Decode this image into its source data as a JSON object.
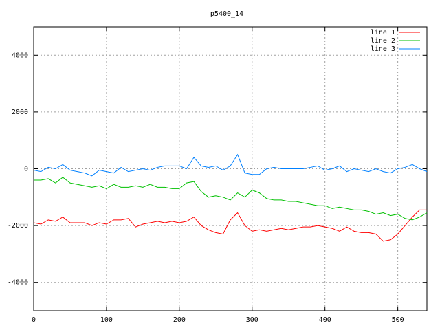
{
  "chart_data": {
    "type": "line",
    "title": "p5400_14",
    "x": [
      0,
      10,
      20,
      30,
      40,
      50,
      60,
      70,
      80,
      90,
      100,
      110,
      120,
      130,
      140,
      150,
      160,
      170,
      180,
      190,
      200,
      210,
      220,
      230,
      240,
      250,
      260,
      270,
      280,
      290,
      300,
      310,
      320,
      330,
      340,
      350,
      360,
      370,
      380,
      390,
      400,
      410,
      420,
      430,
      440,
      450,
      460,
      470,
      480,
      490,
      500,
      510,
      520,
      530,
      540
    ],
    "series": [
      {
        "name": "line 1",
        "color": "#ff0000",
        "values": [
          -1900,
          -1950,
          -1800,
          -1850,
          -1700,
          -1900,
          -1900,
          -1900,
          -2000,
          -1900,
          -1950,
          -1800,
          -1800,
          -1750,
          -2050,
          -1950,
          -1900,
          -1850,
          -1900,
          -1850,
          -1900,
          -1850,
          -1700,
          -2000,
          -2150,
          -2250,
          -2300,
          -1800,
          -1550,
          -2000,
          -2200,
          -2150,
          -2200,
          -2150,
          -2100,
          -2150,
          -2100,
          -2050,
          -2050,
          -2000,
          -2050,
          -2100,
          -2200,
          -2050,
          -2200,
          -2250,
          -2250,
          -2300,
          -2550,
          -2500,
          -2300,
          -2000,
          -1700,
          -1450,
          -1450
        ]
      },
      {
        "name": "line 2",
        "color": "#00c000",
        "values": [
          -400,
          -400,
          -350,
          -500,
          -300,
          -500,
          -550,
          -600,
          -650,
          -600,
          -700,
          -550,
          -650,
          -650,
          -600,
          -650,
          -550,
          -650,
          -650,
          -700,
          -700,
          -500,
          -450,
          -800,
          -1000,
          -950,
          -1000,
          -1100,
          -850,
          -1000,
          -750,
          -850,
          -1050,
          -1100,
          -1100,
          -1150,
          -1150,
          -1200,
          -1250,
          -1300,
          -1300,
          -1400,
          -1350,
          -1400,
          -1450,
          -1450,
          -1500,
          -1600,
          -1550,
          -1650,
          -1600,
          -1750,
          -1800,
          -1700,
          -1550
        ]
      },
      {
        "name": "line 3",
        "color": "#0080ff",
        "values": [
          -50,
          -100,
          50,
          0,
          150,
          -50,
          -100,
          -150,
          -250,
          -50,
          -100,
          -150,
          50,
          -100,
          -50,
          0,
          -50,
          50,
          100,
          100,
          100,
          0,
          400,
          100,
          50,
          100,
          -50,
          100,
          500,
          -150,
          -200,
          -200,
          0,
          50,
          0,
          0,
          0,
          0,
          50,
          100,
          -50,
          0,
          100,
          -100,
          0,
          -50,
          -100,
          0,
          -100,
          -150,
          0,
          50,
          150,
          0,
          -100
        ]
      }
    ],
    "xlim": [
      0,
      540
    ],
    "ylim": [
      -5000,
      5000
    ],
    "xticks": [
      0,
      100,
      200,
      300,
      400,
      500
    ],
    "yticks": [
      -4000,
      -2000,
      0,
      2000,
      4000
    ],
    "grid": true,
    "legend": "top-right"
  }
}
